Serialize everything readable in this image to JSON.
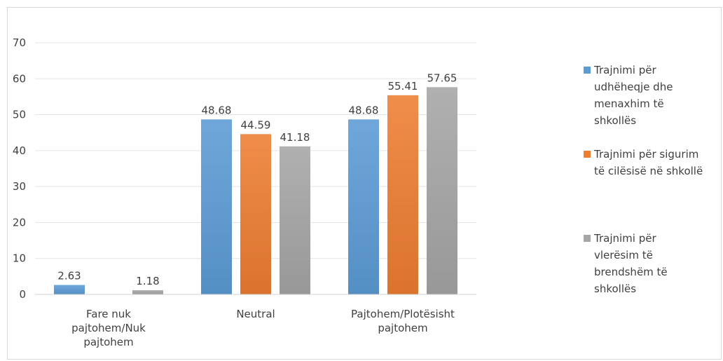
{
  "chart_data": {
    "type": "bar",
    "categories": [
      [
        "Fare nuk",
        "pajtohem/Nuk",
        "pajtohem"
      ],
      [
        "Neutral"
      ],
      [
        "Pajtohem/Plotësisht",
        "pajtohem"
      ]
    ],
    "series": [
      {
        "name": [
          "Trajnimi për",
          "udhëheqje dhe",
          "menaxhim të",
          "shkollës"
        ],
        "color": "#5b9bd5",
        "values": [
          2.63,
          48.68,
          48.68
        ],
        "labels": [
          "2.63",
          "48.68",
          "48.68"
        ]
      },
      {
        "name": [
          "Trajnimi për sigurim",
          "të cilësisë në shkollë"
        ],
        "color": "#ed7d31",
        "values": [
          0,
          44.59,
          55.41
        ],
        "labels": [
          null,
          "44.59",
          "55.41"
        ]
      },
      {
        "name": [
          "Trajnimi për",
          "vlerësim të",
          "brendshëm të",
          "shkollës"
        ],
        "color": "#a5a5a5",
        "values": [
          1.18,
          41.18,
          57.65
        ],
        "labels": [
          "1.18",
          "41.18",
          "57.65"
        ]
      }
    ],
    "yticks": [
      "0",
      "10",
      "20",
      "30",
      "40",
      "50",
      "60",
      "70"
    ],
    "ylim": [
      0,
      70
    ],
    "grid": true,
    "legend": "right"
  }
}
